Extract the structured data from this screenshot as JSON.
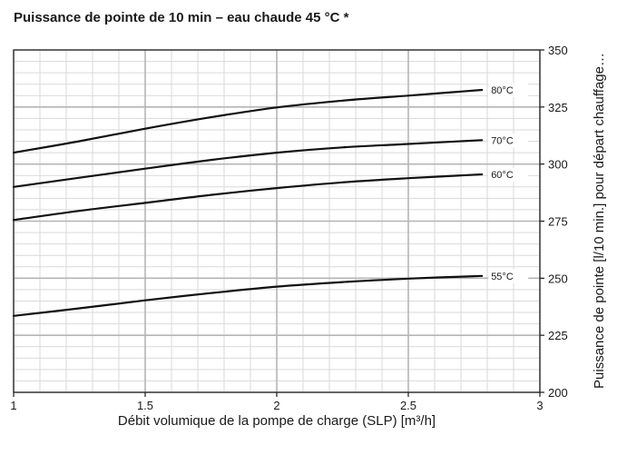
{
  "chart_data": {
    "type": "line",
    "title": "Puissance de pointe de 10 min – eau chaude 45 °C *",
    "xlabel": "Débit volumique de la pompe de charge (SLP) [m³/h]",
    "ylabel": "Puissance de pointe [l/10 min.] pour départ chauffage…",
    "xlim": [
      1,
      3
    ],
    "ylim": [
      200,
      350
    ],
    "x_ticks": [
      1,
      1.5,
      2,
      2.5,
      3
    ],
    "x_tick_labels": [
      "1",
      "1.5",
      "2",
      "2.5",
      "3"
    ],
    "y_ticks": [
      200,
      225,
      250,
      275,
      300,
      325,
      350
    ],
    "y_tick_labels": [
      "200",
      "225",
      "250",
      "275",
      "300",
      "325",
      "350"
    ],
    "grid": true,
    "series": [
      {
        "name": "80°C",
        "x": [
          1,
          1.25,
          1.5,
          1.75,
          2,
          2.25,
          2.5,
          2.78
        ],
        "y": [
          305,
          310,
          315.5,
          320.5,
          324.8,
          327.8,
          330,
          332.5
        ]
      },
      {
        "name": "70°C",
        "x": [
          1,
          1.25,
          1.5,
          1.75,
          2,
          2.25,
          2.5,
          2.78
        ],
        "y": [
          290,
          294,
          298,
          301.8,
          305,
          307.3,
          308.8,
          310.5
        ]
      },
      {
        "name": "60°C",
        "x": [
          1,
          1.25,
          1.5,
          1.75,
          2,
          2.25,
          2.5,
          2.78
        ],
        "y": [
          275.5,
          279.5,
          283,
          286.5,
          289.5,
          292,
          293.8,
          295.5
        ]
      },
      {
        "name": "55°C",
        "x": [
          1,
          1.25,
          1.5,
          1.75,
          2,
          2.25,
          2.5,
          2.78
        ],
        "y": [
          233.5,
          236.8,
          240.3,
          243.5,
          246.3,
          248.3,
          249.8,
          251
        ]
      }
    ],
    "colors": {
      "line": "#111111",
      "grid_major": "#b5b5b5",
      "grid_minor": "#dadada",
      "frame": "#1a1a1a"
    }
  }
}
